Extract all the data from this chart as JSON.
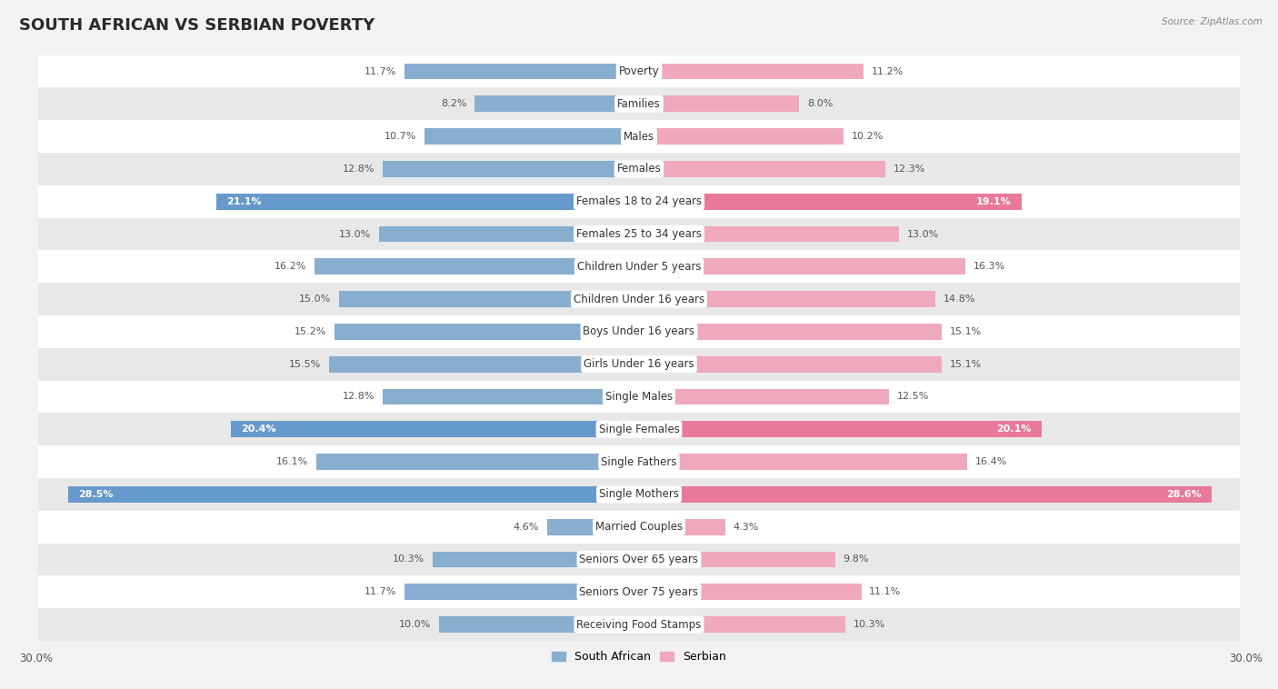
{
  "title": "SOUTH AFRICAN VS SERBIAN POVERTY",
  "source": "Source: ZipAtlas.com",
  "categories": [
    "Poverty",
    "Families",
    "Males",
    "Females",
    "Females 18 to 24 years",
    "Females 25 to 34 years",
    "Children Under 5 years",
    "Children Under 16 years",
    "Boys Under 16 years",
    "Girls Under 16 years",
    "Single Males",
    "Single Females",
    "Single Fathers",
    "Single Mothers",
    "Married Couples",
    "Seniors Over 65 years",
    "Seniors Over 75 years",
    "Receiving Food Stamps"
  ],
  "south_african": [
    11.7,
    8.2,
    10.7,
    12.8,
    21.1,
    13.0,
    16.2,
    15.0,
    15.2,
    15.5,
    12.8,
    20.4,
    16.1,
    28.5,
    4.6,
    10.3,
    11.7,
    10.0
  ],
  "serbian": [
    11.2,
    8.0,
    10.2,
    12.3,
    19.1,
    13.0,
    16.3,
    14.8,
    15.1,
    15.1,
    12.5,
    20.1,
    16.4,
    28.6,
    4.3,
    9.8,
    11.1,
    10.3
  ],
  "highlight_rows": [
    4,
    11,
    13
  ],
  "sa_color_normal": "#87aece",
  "sa_color_highlight": "#6699cc",
  "sr_color_normal": "#f0a8bc",
  "sr_color_highlight": "#e8799a",
  "bg_color": "#f2f2f2",
  "row_bg_white": "#ffffff",
  "row_bg_gray": "#e8e8e8",
  "axis_max": 30.0,
  "legend_sa": "South African",
  "legend_sr": "Serbian",
  "title_fontsize": 13,
  "label_fontsize": 8.5,
  "value_fontsize": 8.0,
  "bottom_label": "30.0%"
}
